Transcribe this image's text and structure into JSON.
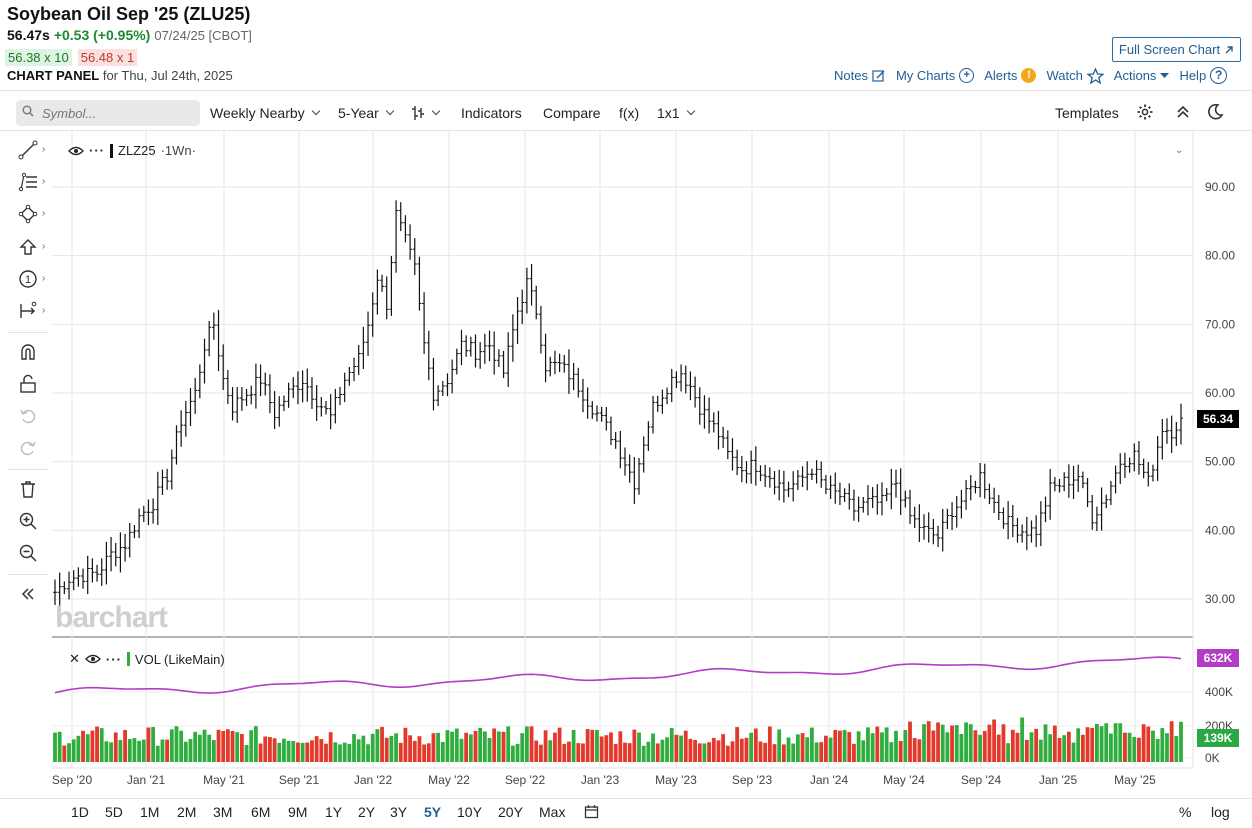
{
  "header": {
    "title": "Soybean Oil Sep '25 (ZLU25)",
    "last": "56.47s",
    "change": "+0.53 (+0.95%)",
    "date": "07/24/25 [CBOT]",
    "bid": "56.38 x 10",
    "ask": "56.48 x 1",
    "panel_label": "CHART PANEL",
    "panel_date": "for Thu, Jul 24th, 2025"
  },
  "links": {
    "full_screen": "Full Screen Chart",
    "notes": "Notes",
    "my_charts": "My Charts",
    "alerts": "Alerts",
    "watch": "Watch",
    "actions": "Actions",
    "help": "Help"
  },
  "toolbar": {
    "search_placeholder": "Symbol...",
    "timeframe": "Weekly Nearby",
    "range": "5-Year",
    "indicators": "Indicators",
    "compare": "Compare",
    "fx": "f(x)",
    "layout": "1x1",
    "templates": "Templates"
  },
  "legend": {
    "main": "ZLZ25",
    "main_suffix": "·1Wn·",
    "vol": "VOL (LikeMain)"
  },
  "watermark": "barchart",
  "price_tag": "56.34",
  "vol_tag_ma": "632K",
  "vol_tag_last": "139K",
  "periods": [
    "1D",
    "5D",
    "1M",
    "2M",
    "3M",
    "6M",
    "9M",
    "1Y",
    "2Y",
    "3Y",
    "5Y",
    "10Y",
    "20Y",
    "Max"
  ],
  "active_period": "5Y",
  "bottom_right": {
    "pct": "%",
    "log": "log"
  },
  "colors": {
    "up": "#2fae3f",
    "down": "#e2392b",
    "ma": "#b33cc6",
    "link": "#1f5e96"
  },
  "chart_data": {
    "type": "bar",
    "title": "",
    "y_ticks": [
      "90.00",
      "80.00",
      "70.00",
      "60.00",
      "50.00",
      "40.00",
      "30.00"
    ],
    "ylim": [
      27,
      95
    ],
    "vol_ticks": [
      "400K",
      "200K",
      "0K"
    ],
    "x_labels": [
      "Sep '20",
      "Jan '21",
      "May '21",
      "Sep '21",
      "Jan '22",
      "May '22",
      "Sep '22",
      "Jan '23",
      "May '23",
      "Sep '23",
      "Jan '24",
      "May '24",
      "Sep '24",
      "Jan '25",
      "May '25"
    ],
    "closes": [
      [
        0,
        31.0
      ],
      [
        3,
        33.0
      ],
      [
        6,
        33.5
      ],
      [
        9,
        33.8
      ],
      [
        12,
        36.5
      ],
      [
        15,
        38.0
      ],
      [
        18,
        42.0
      ],
      [
        21,
        44.0
      ],
      [
        24,
        48.0
      ],
      [
        27,
        56.0
      ],
      [
        30,
        60.0
      ],
      [
        32,
        67.0
      ],
      [
        34,
        70.0
      ],
      [
        36,
        62.0
      ],
      [
        38,
        58.0
      ],
      [
        41,
        60.0
      ],
      [
        44,
        62.0
      ],
      [
        47,
        57.0
      ],
      [
        50,
        60.0
      ],
      [
        53,
        62.0
      ],
      [
        56,
        59.0
      ],
      [
        59,
        56.5
      ],
      [
        62,
        62.0
      ],
      [
        65,
        65.0
      ],
      [
        67,
        70.0
      ],
      [
        69,
        77.0
      ],
      [
        71,
        73.0
      ],
      [
        73,
        86.0
      ],
      [
        75,
        82.0
      ],
      [
        77,
        78.0
      ],
      [
        79,
        67.0
      ],
      [
        81,
        60.0
      ],
      [
        84,
        62.0
      ],
      [
        87,
        67.0
      ],
      [
        90,
        66.0
      ],
      [
        93,
        67.0
      ],
      [
        96,
        63.0
      ],
      [
        99,
        72.0
      ],
      [
        101,
        76.0
      ],
      [
        103,
        72.0
      ],
      [
        105,
        64.0
      ],
      [
        108,
        64.0
      ],
      [
        111,
        62.0
      ],
      [
        114,
        59.0
      ],
      [
        117,
        56.0
      ],
      [
        120,
        53.0
      ],
      [
        122,
        50.0
      ],
      [
        124,
        47.0
      ],
      [
        126,
        53.0
      ],
      [
        128,
        58.0
      ],
      [
        130,
        60.0
      ],
      [
        132,
        62.0
      ],
      [
        134,
        63.0
      ],
      [
        136,
        61.0
      ],
      [
        138,
        58.0
      ],
      [
        140,
        56.0
      ],
      [
        142,
        54.0
      ],
      [
        144,
        51.0
      ],
      [
        147,
        49.0
      ],
      [
        150,
        49.5
      ],
      [
        153,
        48.0
      ],
      [
        156,
        46.0
      ],
      [
        159,
        47.0
      ],
      [
        162,
        49.0
      ],
      [
        165,
        46.0
      ],
      [
        168,
        45.0
      ],
      [
        171,
        43.0
      ],
      [
        174,
        44.0
      ],
      [
        177,
        44.0
      ],
      [
        180,
        47.0
      ],
      [
        183,
        42.0
      ],
      [
        186,
        40.0
      ],
      [
        189,
        39.0
      ],
      [
        192,
        43.0
      ],
      [
        195,
        45.0
      ],
      [
        198,
        48.0
      ],
      [
        201,
        44.0
      ],
      [
        204,
        41.0
      ],
      [
        207,
        40.0
      ],
      [
        210,
        40.0
      ],
      [
        213,
        46.0
      ],
      [
        216,
        47.0
      ],
      [
        219,
        48.0
      ],
      [
        222,
        42.0
      ],
      [
        225,
        45.0
      ],
      [
        228,
        50.0
      ],
      [
        231,
        51.0
      ],
      [
        234,
        47.0
      ],
      [
        237,
        55.0
      ],
      [
        239,
        54.5
      ],
      [
        241,
        56.34
      ]
    ],
    "volume_ma_label": "632K",
    "volume_last_label": "139K"
  }
}
